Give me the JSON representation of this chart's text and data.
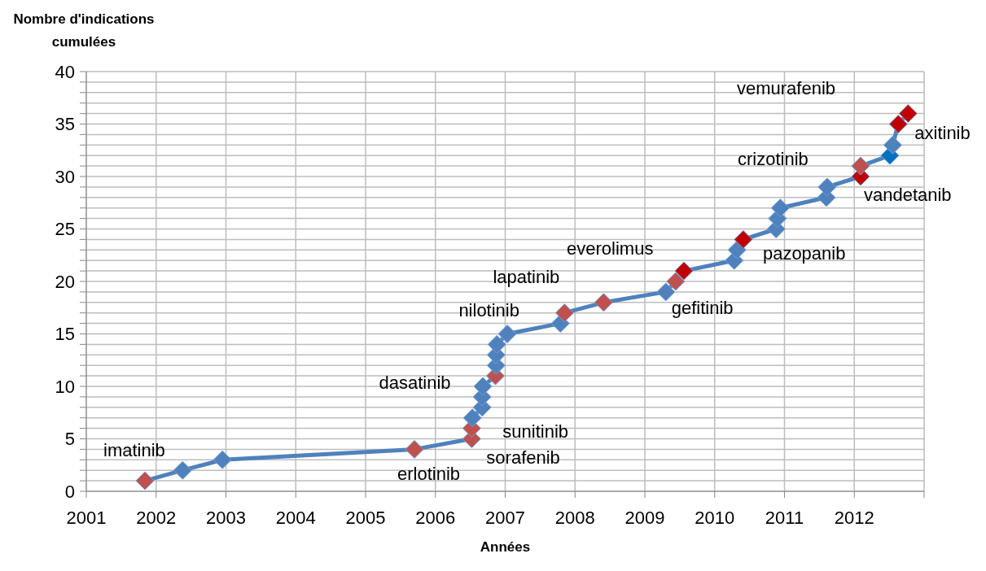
{
  "chart_data": {
    "type": "line",
    "xlabel": "Années",
    "ylabel": "Nombre d'indications cumulées",
    "xlim": [
      2001,
      2013
    ],
    "xticks": [
      2001,
      2002,
      2003,
      2004,
      2005,
      2006,
      2007,
      2008,
      2009,
      2010,
      2011,
      2012,
      {
        "value": 2013,
        "label": null
      }
    ],
    "ylim": [
      0,
      40
    ],
    "yticks": [
      0,
      {
        "value": 1,
        "label": null
      },
      {
        "value": 2,
        "label": null
      },
      {
        "value": 3,
        "label": null
      },
      {
        "value": 4,
        "label": null
      },
      5,
      {
        "value": 6,
        "label": null
      },
      {
        "value": 7,
        "label": null
      },
      {
        "value": 8,
        "label": null
      },
      {
        "value": 9,
        "label": null
      },
      10,
      {
        "value": 11,
        "label": null
      },
      {
        "value": 12,
        "label": null
      },
      {
        "value": 13,
        "label": null
      },
      {
        "value": 14,
        "label": null
      },
      15,
      {
        "value": 16,
        "label": null
      },
      {
        "value": 17,
        "label": null
      },
      {
        "value": 18,
        "label": null
      },
      {
        "value": 19,
        "label": null
      },
      20,
      {
        "value": 21,
        "label": null
      },
      {
        "value": 22,
        "label": null
      },
      {
        "value": 23,
        "label": null
      },
      {
        "value": 24,
        "label": null
      },
      25,
      {
        "value": 26,
        "label": null
      },
      {
        "value": 27,
        "label": null
      },
      {
        "value": 28,
        "label": null
      },
      {
        "value": 29,
        "label": null
      },
      30,
      {
        "value": 31,
        "label": null
      },
      {
        "value": 32,
        "label": null
      },
      {
        "value": 33,
        "label": null
      },
      {
        "value": 34,
        "label": null
      },
      35,
      {
        "value": 36,
        "label": null
      },
      {
        "value": 37,
        "label": null
      },
      {
        "value": 38,
        "label": null
      },
      {
        "value": 39,
        "label": null
      },
      40
    ],
    "grid": true,
    "marker": "diamond",
    "line_style": "solid",
    "legend": false,
    "series": [
      {
        "color": "#4f81bd",
        "x": [
          2001.84,
          2002.38,
          2002.95,
          2005.7,
          2006.52,
          2006.52,
          2006.53,
          2006.67,
          2006.67,
          2006.68,
          2006.86,
          2006.87,
          2006.87,
          2006.88,
          2007.03,
          2007.79,
          2007.85,
          2008.41,
          2009.3,
          2009.44,
          2009.56,
          2010.28,
          2010.32,
          2010.41,
          2010.88,
          2010.9,
          2010.94,
          2011.6,
          2011.61,
          2012.09,
          2012.09,
          2012.51,
          2012.55,
          2012.63,
          2012.77
        ],
        "values": [
          1,
          2,
          3,
          4,
          5,
          6,
          7,
          8,
          9,
          10,
          11,
          12,
          13,
          14,
          15,
          16,
          17,
          18,
          19,
          20,
          21,
          22,
          23,
          24,
          25,
          26,
          27,
          28,
          29,
          30,
          31,
          32,
          33,
          35,
          36
        ],
        "colors": [
          "#c0504d",
          "#4f81bd",
          "#4f81bd",
          "#c0504d",
          "#c0504d",
          "#c0504d",
          "#4f81bd",
          "#4f81bd",
          "#4f81bd",
          "#4f81bd",
          "#c0504d",
          "#4f81bd",
          "#4f81bd",
          "#4f81bd",
          "#4f81bd",
          "#4f81bd",
          "#c0504d",
          "#c0504d",
          "#4f81bd",
          "#c0504d",
          "#c00000",
          "#4f81bd",
          "#4f81bd",
          "#c00000",
          "#4f81bd",
          "#4f81bd",
          "#4f81bd",
          "#4f81bd",
          "#4f81bd",
          "#c00000",
          "#c0504d",
          "#0070c0",
          "#4f81bd",
          "#c00000",
          "#c00000"
        ]
      }
    ],
    "annotations": [
      {
        "text": "imatinib",
        "x": 2001.84,
        "y": 1
      },
      {
        "text": "erlotinib",
        "x": 2005.7,
        "y": 4
      },
      {
        "text": "sorafenib",
        "x": 2006.52,
        "y": 5
      },
      {
        "text": "sunitinib",
        "x": 2006.52,
        "y": 6
      },
      {
        "text": "dasatinib",
        "x": 2006.86,
        "y": 11
      },
      {
        "text": "nilotinib",
        "x": 2007.85,
        "y": 17
      },
      {
        "text": "lapatinib",
        "x": 2008.41,
        "y": 18
      },
      {
        "text": "everolimus",
        "x": 2009.56,
        "y": 21
      },
      {
        "text": "gefitinib",
        "x": 2009.44,
        "y": 20
      },
      {
        "text": "pazopanib",
        "x": 2010.41,
        "y": 24
      },
      {
        "text": "crizotinib",
        "x": 2012.09,
        "y": 31
      },
      {
        "text": "vandetanib",
        "x": 2012.09,
        "y": 30
      },
      "vemurafenib",
      {
        "text": "axitinib",
        "x": 2012.63,
        "y": 35
      }
    ]
  }
}
